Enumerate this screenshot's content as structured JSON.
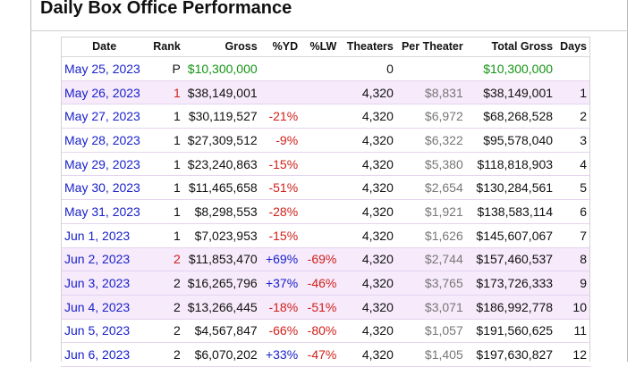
{
  "title": "Daily Box Office Performance",
  "columns": {
    "date": "Date",
    "rank": "Rank",
    "gross": "Gross",
    "yd": "%YD",
    "lw": "%LW",
    "theaters": "Theaters",
    "per_theater": "Per Theater",
    "total_gross": "Total Gross",
    "days": "Days"
  },
  "rows": [
    {
      "date": "May 25, 2023",
      "rank": "P",
      "gross": "$10,300,000",
      "yd": "",
      "lw": "",
      "theaters": "0",
      "per_theater": "",
      "total_gross": "$10,300,000",
      "days": ""
    },
    {
      "date": "May 26, 2023",
      "rank": "1",
      "gross": "$38,149,001",
      "yd": "",
      "lw": "",
      "theaters": "4,320",
      "per_theater": "$8,831",
      "total_gross": "$38,149,001",
      "days": "1"
    },
    {
      "date": "May 27, 2023",
      "rank": "1",
      "gross": "$30,119,527",
      "yd": "-21%",
      "lw": "",
      "theaters": "4,320",
      "per_theater": "$6,972",
      "total_gross": "$68,268,528",
      "days": "2"
    },
    {
      "date": "May 28, 2023",
      "rank": "1",
      "gross": "$27,309,512",
      "yd": "-9%",
      "lw": "",
      "theaters": "4,320",
      "per_theater": "$6,322",
      "total_gross": "$95,578,040",
      "days": "3"
    },
    {
      "date": "May 29, 2023",
      "rank": "1",
      "gross": "$23,240,863",
      "yd": "-15%",
      "lw": "",
      "theaters": "4,320",
      "per_theater": "$5,380",
      "total_gross": "$118,818,903",
      "days": "4"
    },
    {
      "date": "May 30, 2023",
      "rank": "1",
      "gross": "$11,465,658",
      "yd": "-51%",
      "lw": "",
      "theaters": "4,320",
      "per_theater": "$2,654",
      "total_gross": "$130,284,561",
      "days": "5"
    },
    {
      "date": "May 31, 2023",
      "rank": "1",
      "gross": "$8,298,553",
      "yd": "-28%",
      "lw": "",
      "theaters": "4,320",
      "per_theater": "$1,921",
      "total_gross": "$138,583,114",
      "days": "6"
    },
    {
      "date": "Jun 1, 2023",
      "rank": "1",
      "gross": "$7,023,953",
      "yd": "-15%",
      "lw": "",
      "theaters": "4,320",
      "per_theater": "$1,626",
      "total_gross": "$145,607,067",
      "days": "7"
    },
    {
      "date": "Jun 2, 2023",
      "rank": "2",
      "gross": "$11,853,470",
      "yd": "+69%",
      "lw": "-69%",
      "theaters": "4,320",
      "per_theater": "$2,744",
      "total_gross": "$157,460,537",
      "days": "8"
    },
    {
      "date": "Jun 3, 2023",
      "rank": "2",
      "gross": "$16,265,796",
      "yd": "+37%",
      "lw": "-46%",
      "theaters": "4,320",
      "per_theater": "$3,765",
      "total_gross": "$173,726,333",
      "days": "9"
    },
    {
      "date": "Jun 4, 2023",
      "rank": "2",
      "gross": "$13,266,445",
      "yd": "-18%",
      "lw": "-51%",
      "theaters": "4,320",
      "per_theater": "$3,071",
      "total_gross": "$186,992,778",
      "days": "10"
    },
    {
      "date": "Jun 5, 2023",
      "rank": "2",
      "gross": "$4,567,847",
      "yd": "-66%",
      "lw": "-80%",
      "theaters": "4,320",
      "per_theater": "$1,057",
      "total_gross": "$191,560,625",
      "days": "11"
    },
    {
      "date": "Jun 6, 2023",
      "rank": "2",
      "gross": "$6,070,202",
      "yd": "+33%",
      "lw": "-47%",
      "theaters": "4,320",
      "per_theater": "$1,405",
      "total_gross": "$197,630,827",
      "days": "12"
    }
  ],
  "colors": {
    "link": "#1a22c9",
    "positive": "#1a22c9",
    "negative": "#d0201a",
    "preview": "#139413",
    "rank_change": "#d0201a",
    "row_shade": "#f6eafb"
  }
}
